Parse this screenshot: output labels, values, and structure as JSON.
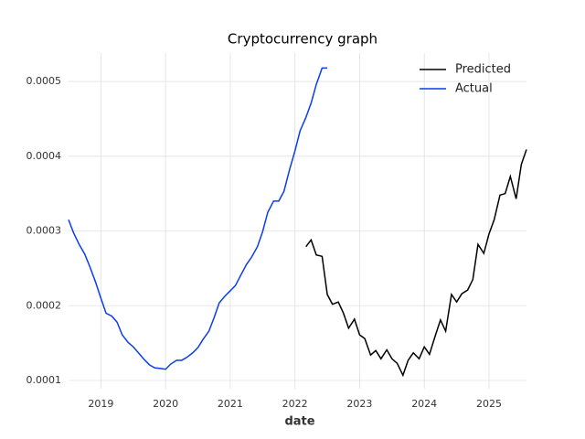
{
  "chart_data": {
    "type": "line",
    "title": "Cryptocurrency graph",
    "x_label": "date",
    "series": [
      {
        "name": "Predicted",
        "color": "#000000",
        "x": [
          2022.17,
          2022.25,
          2022.33,
          2022.42,
          2022.5,
          2022.58,
          2022.67,
          2022.75,
          2022.83,
          2022.92,
          2023.0,
          2023.08,
          2023.17,
          2023.25,
          2023.33,
          2023.42,
          2023.5,
          2023.58,
          2023.67,
          2023.75,
          2023.83,
          2023.92,
          2024.0,
          2024.08,
          2024.17,
          2024.25,
          2024.33,
          2024.42,
          2024.5,
          2024.58,
          2024.67,
          2024.75,
          2024.83,
          2024.92,
          2025.0,
          2025.08,
          2025.17,
          2025.25,
          2025.33,
          2025.42,
          2025.5,
          2025.58
        ],
        "values": [
          0.000279,
          0.000288,
          0.000268,
          0.000266,
          0.000215,
          0.000202,
          0.000205,
          0.00019,
          0.00017,
          0.000182,
          0.000161,
          0.000156,
          0.000134,
          0.00014,
          0.000129,
          0.000141,
          0.000129,
          0.000123,
          0.000107,
          0.000127,
          0.000137,
          0.000129,
          0.000145,
          0.000135,
          0.00016,
          0.000181,
          0.000166,
          0.000215,
          0.000205,
          0.000216,
          0.000221,
          0.000235,
          0.000282,
          0.00027,
          0.000296,
          0.000315,
          0.000348,
          0.00035,
          0.000373,
          0.000343,
          0.000389,
          0.000409
        ]
      },
      {
        "name": "Actual",
        "color": "#0a3cf0",
        "x": [
          2018.5,
          2018.58,
          2018.67,
          2018.75,
          2018.83,
          2018.92,
          2019.0,
          2019.08,
          2019.17,
          2019.25,
          2019.33,
          2019.42,
          2019.5,
          2019.58,
          2019.67,
          2019.75,
          2019.83,
          2019.92,
          2020.0,
          2020.08,
          2020.17,
          2020.25,
          2020.33,
          2020.42,
          2020.5,
          2020.58,
          2020.67,
          2020.75,
          2020.83,
          2020.92,
          2021.0,
          2021.08,
          2021.17,
          2021.25,
          2021.33,
          2021.42,
          2021.5,
          2021.58,
          2021.67,
          2021.75,
          2021.83,
          2021.92,
          2022.0,
          2022.08,
          2022.17,
          2022.25,
          2022.33,
          2022.42,
          2022.5
        ],
        "values": [
          0.000315,
          0.000297,
          0.000281,
          0.000269,
          0.000252,
          0.000231,
          0.00021,
          0.00019,
          0.000186,
          0.000178,
          0.000161,
          0.000151,
          0.000145,
          0.000137,
          0.000128,
          0.000121,
          0.000117,
          0.000116,
          0.000115,
          0.000122,
          0.000127,
          0.000127,
          0.000131,
          0.000137,
          0.000144,
          0.000155,
          0.000166,
          0.000184,
          0.000204,
          0.000213,
          0.00022,
          0.000227,
          0.000242,
          0.000255,
          0.000265,
          0.000279,
          0.000299,
          0.000325,
          0.00034,
          0.00034,
          0.000353,
          0.000383,
          0.000407,
          0.000434,
          0.000452,
          0.000471,
          0.000496,
          0.000518,
          0.000518
        ]
      }
    ],
    "xlim": [
      2018.5,
      2025.58
    ],
    "xticks": [
      2019,
      2020,
      2021,
      2022,
      2023,
      2024,
      2025
    ],
    "ylim": [
      8.9e-05,
      0.000538
    ],
    "yticks": [
      0.0001,
      0.0002,
      0.0003,
      0.0004,
      0.0005
    ],
    "grid": true,
    "legend": "upper right"
  }
}
